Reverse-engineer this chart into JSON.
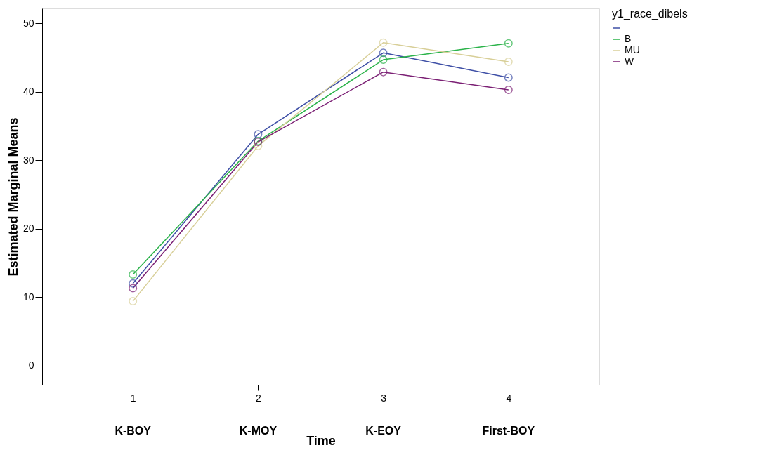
{
  "chart_data": {
    "type": "line",
    "xlabel": "Time",
    "ylabel": "Estimated Marginal Means",
    "legend_title": "y1_race_dibels",
    "x": [
      1,
      2,
      3,
      4
    ],
    "xlim": [
      0.275,
      4.725
    ],
    "xticks": [
      1,
      2,
      3,
      4
    ],
    "ylim": [
      -2.8,
      52.2
    ],
    "yticks": [
      0,
      10,
      20,
      30,
      40,
      50
    ],
    "annotations": [
      "K-BOY",
      "K-MOY",
      "K-EOY",
      "First-BOY"
    ],
    "series": [
      {
        "name": null,
        "color": "#3e4fa6",
        "values": [
          12.0,
          33.8,
          45.7,
          42.1
        ]
      },
      {
        "name": "B",
        "color": "#2bb34a",
        "values": [
          13.3,
          32.8,
          44.7,
          47.1
        ]
      },
      {
        "name": "MU",
        "color": "#d8cf98",
        "values": [
          9.4,
          32.1,
          47.2,
          44.4
        ]
      },
      {
        "name": "W",
        "color": "#7b1f74",
        "values": [
          11.3,
          32.7,
          42.9,
          40.3
        ]
      }
    ],
    "marker": "circle",
    "grid": false,
    "legend": "top right"
  }
}
